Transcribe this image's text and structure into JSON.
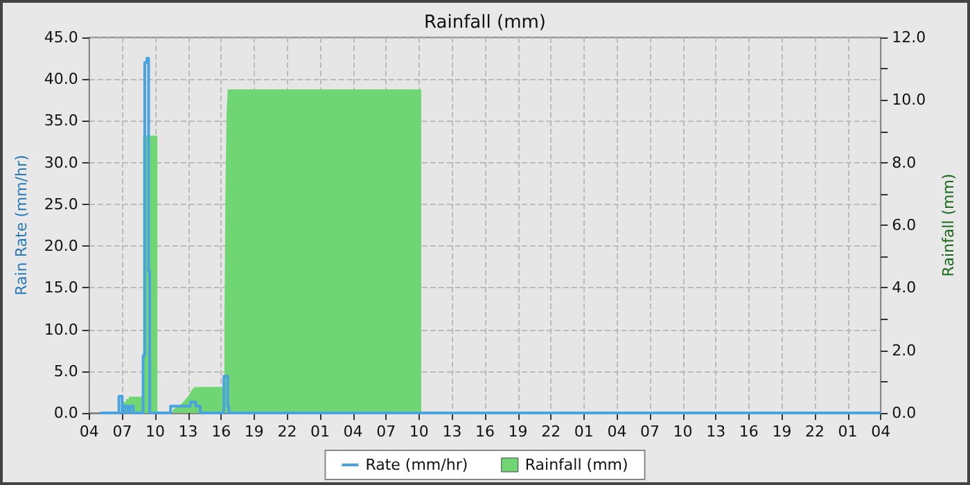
{
  "chart_data": {
    "type": "line",
    "title": "Rainfall (mm)",
    "ylabel": "Rain Rate (mm/hr)",
    "y2label": "Rainfall (mm)",
    "xlim": [
      "--01-01T04:00",
      "--01-04T04:00"
    ],
    "xticks": [
      {
        "value": "--01-01T04:00",
        "label": "04"
      },
      {
        "value": "--01-01T07:00",
        "label": "07"
      },
      {
        "value": "--01-01T10:00",
        "label": "10"
      },
      {
        "value": "--01-01T13:00",
        "label": "13"
      },
      {
        "value": "--01-01T16:00",
        "label": "16"
      },
      {
        "value": "--01-01T19:00",
        "label": "19"
      },
      {
        "value": "--01-01T22:00",
        "label": "22"
      },
      {
        "value": "--01-02T01:00",
        "label": "01"
      },
      {
        "value": "--01-02T04:00",
        "label": "04"
      },
      {
        "value": "--01-02T07:00",
        "label": "07"
      },
      {
        "value": "--01-02T10:00",
        "label": "10"
      },
      {
        "value": "--01-02T13:00",
        "label": "13"
      },
      {
        "value": "--01-02T16:00",
        "label": "16"
      },
      {
        "value": "--01-02T19:00",
        "label": "19"
      },
      {
        "value": "--01-02T22:00",
        "label": "22"
      },
      {
        "value": "--01-03T01:00",
        "label": "01"
      },
      {
        "value": "--01-03T04:00",
        "label": "04"
      },
      {
        "value": "--01-03T07:00",
        "label": "07"
      },
      {
        "value": "--01-03T10:00",
        "label": "10"
      },
      {
        "value": "--01-03T13:00",
        "label": "13"
      },
      {
        "value": "--01-03T16:00",
        "label": "16"
      },
      {
        "value": "--01-03T19:00",
        "label": "19"
      },
      {
        "value": "--01-03T22:00",
        "label": "22"
      },
      {
        "value": "--01-04T01:00",
        "label": "01"
      },
      {
        "value": "--01-04T04:00",
        "label": "04"
      }
    ],
    "ylim": [
      0,
      45
    ],
    "yticks": [
      {
        "value": 0,
        "label": "0.0"
      },
      {
        "value": 5,
        "label": "5.0"
      },
      {
        "value": 10,
        "label": "10.0"
      },
      {
        "value": 15,
        "label": "15.0"
      },
      {
        "value": 20,
        "label": "20.0"
      },
      {
        "value": 25,
        "label": "25.0"
      },
      {
        "value": 30,
        "label": "30.0"
      },
      {
        "value": 35,
        "label": "35.0"
      },
      {
        "value": 40,
        "label": "40.0"
      },
      {
        "value": 45,
        "label": "45.0"
      }
    ],
    "y2lim": [
      0,
      12
    ],
    "y2ticks": [
      {
        "value": 0,
        "label": "0.0"
      },
      {
        "value": 1,
        "label": null
      },
      {
        "value": 2,
        "label": "2.0"
      },
      {
        "value": 3,
        "label": null
      },
      {
        "value": 4,
        "label": "4.0"
      },
      {
        "value": 5,
        "label": null
      },
      {
        "value": 6,
        "label": "6.0"
      },
      {
        "value": 7,
        "label": null
      },
      {
        "value": 8,
        "label": "8.0"
      },
      {
        "value": 9,
        "label": null
      },
      {
        "value": 10,
        "label": "10.0"
      },
      {
        "value": 11,
        "label": null
      },
      {
        "value": 12,
        "label": "12.0"
      }
    ],
    "grid": true,
    "legend": "bottom",
    "series": [
      {
        "name": "Rainfall (mm)",
        "type": "area",
        "axis": "y2",
        "color": "#6fd673",
        "x": [
          "--01-01T07:06",
          "--01-01T07:21",
          "--01-01T07:21",
          "--01-01T07:36",
          "--01-01T07:36",
          "--01-01T08:54",
          "--01-01T08:54",
          "--01-01T10:12",
          "--01-01T10:54",
          "--01-01T11:36",
          "--01-01T12:00",
          "--01-01T12:24",
          "--01-01T12:48",
          "--01-01T13:06",
          "--01-01T13:18",
          "--01-01T13:36",
          "--01-01T16:18",
          "--01-01T16:18",
          "--01-01T16:24",
          "--01-01T16:30",
          "--01-01T16:36",
          "--01-02T10:12"
        ],
        "values": [
          0.35,
          0.35,
          0.45,
          0.45,
          0.52,
          0.52,
          8.86,
          8.86,
          null,
          0.1,
          0.2,
          0.3,
          0.45,
          0.58,
          0.73,
          0.83,
          0.83,
          2.97,
          7.37,
          9.64,
          10.34,
          10.34
        ]
      },
      {
        "name": "Rate (mm/hr)",
        "color": "#4aa3df",
        "x": [
          "--01-01T05:00",
          "--01-01T06:42",
          "--01-01T06:42",
          "--01-01T07:00",
          "--01-01T07:00",
          "--01-01T07:12",
          "--01-01T07:12",
          "--01-01T07:30",
          "--01-01T07:30",
          "--01-01T07:42",
          "--01-01T07:42",
          "--01-01T08:00",
          "--01-01T08:00",
          "--01-01T08:54",
          "--01-01T08:54",
          "--01-01T09:03",
          "--01-01T09:03",
          "--01-01T09:15",
          "--01-01T09:15",
          "--01-01T09:24",
          "--01-01T09:24",
          "--01-01T09:30",
          "--01-01T09:30",
          "--01-01T11:24",
          "--01-01T11:24",
          "--01-01T13:12",
          "--01-01T13:12",
          "--01-01T13:42",
          "--01-01T13:42",
          "--01-01T14:06",
          "--01-01T14:06",
          "--01-01T16:15",
          "--01-01T16:15",
          "--01-01T16:36",
          "--01-01T16:36",
          "--01-01T16:42",
          "--01-01T16:42",
          "--01-04T04:00"
        ],
        "values": [
          0,
          0,
          2.0,
          2.0,
          0,
          0,
          0.8,
          0.8,
          0,
          0,
          0.8,
          0.8,
          0,
          0,
          6.9,
          6.9,
          42.0,
          42.0,
          42.5,
          42.5,
          17.0,
          17.0,
          0,
          0,
          0.8,
          0.8,
          1.3,
          1.3,
          0.8,
          0.8,
          0,
          0,
          4.4,
          4.4,
          0.8,
          0.8,
          0,
          0
        ]
      }
    ]
  }
}
